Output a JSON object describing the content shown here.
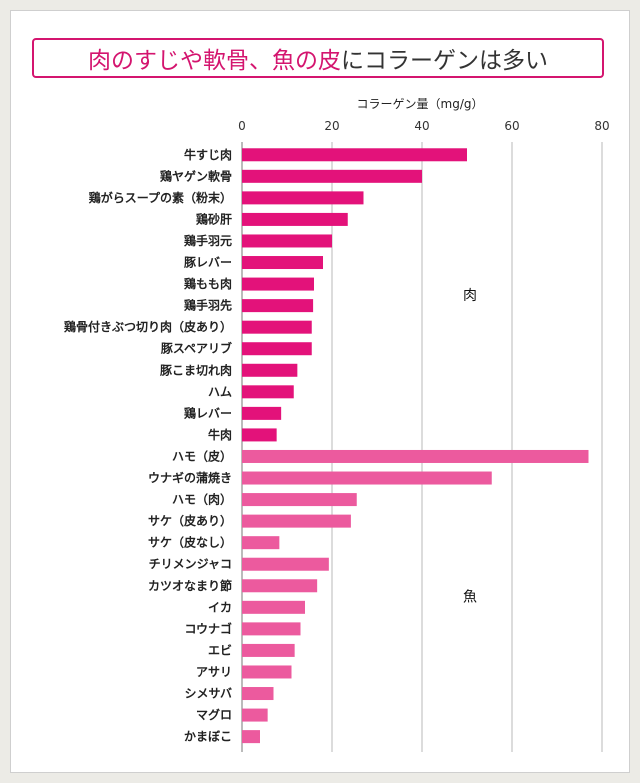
{
  "title": {
    "part1": "肉のすじや軟骨、魚の皮",
    "part2": "にコラーゲンは多い"
  },
  "chart_data": {
    "type": "bar",
    "orientation": "horizontal",
    "xlabel": "コラーゲン量（mg/g）",
    "xlim": [
      0,
      80
    ],
    "xticks": [
      0,
      20,
      40,
      60,
      80
    ],
    "grid": true,
    "categories": [
      "牛すじ肉",
      "鶏ヤゲン軟骨",
      "鶏がらスープの素（粉末）",
      "鶏砂肝",
      "鶏手羽元",
      "豚レバー",
      "鶏もも肉",
      "鶏手羽先",
      "鶏骨付きぶつ切り肉（皮あり）",
      "豚スペアリブ",
      "豚こま切れ肉",
      "ハム",
      "鶏レバー",
      "牛肉",
      "ハモ（皮）",
      "ウナギの蒲焼き",
      "ハモ（肉）",
      "サケ（皮あり）",
      "サケ（皮なし）",
      "チリメンジャコ",
      "カツオなまり節",
      "イカ",
      "コウナゴ",
      "エビ",
      "アサリ",
      "シメサバ",
      "マグロ",
      "かまぼこ"
    ],
    "values": [
      50,
      40,
      27,
      23.5,
      20,
      18,
      16,
      15.8,
      15.5,
      15.5,
      12.3,
      11.5,
      8.7,
      7.7,
      77,
      55.5,
      25.5,
      24.2,
      8.3,
      19.3,
      16.7,
      14,
      13,
      11.7,
      11,
      7,
      5.7,
      4
    ],
    "groups": [
      {
        "label": "肉",
        "start": 0,
        "end": 13,
        "color": "#e3127a"
      },
      {
        "label": "魚",
        "start": 14,
        "end": 27,
        "color": "#ec5a9e"
      }
    ]
  }
}
